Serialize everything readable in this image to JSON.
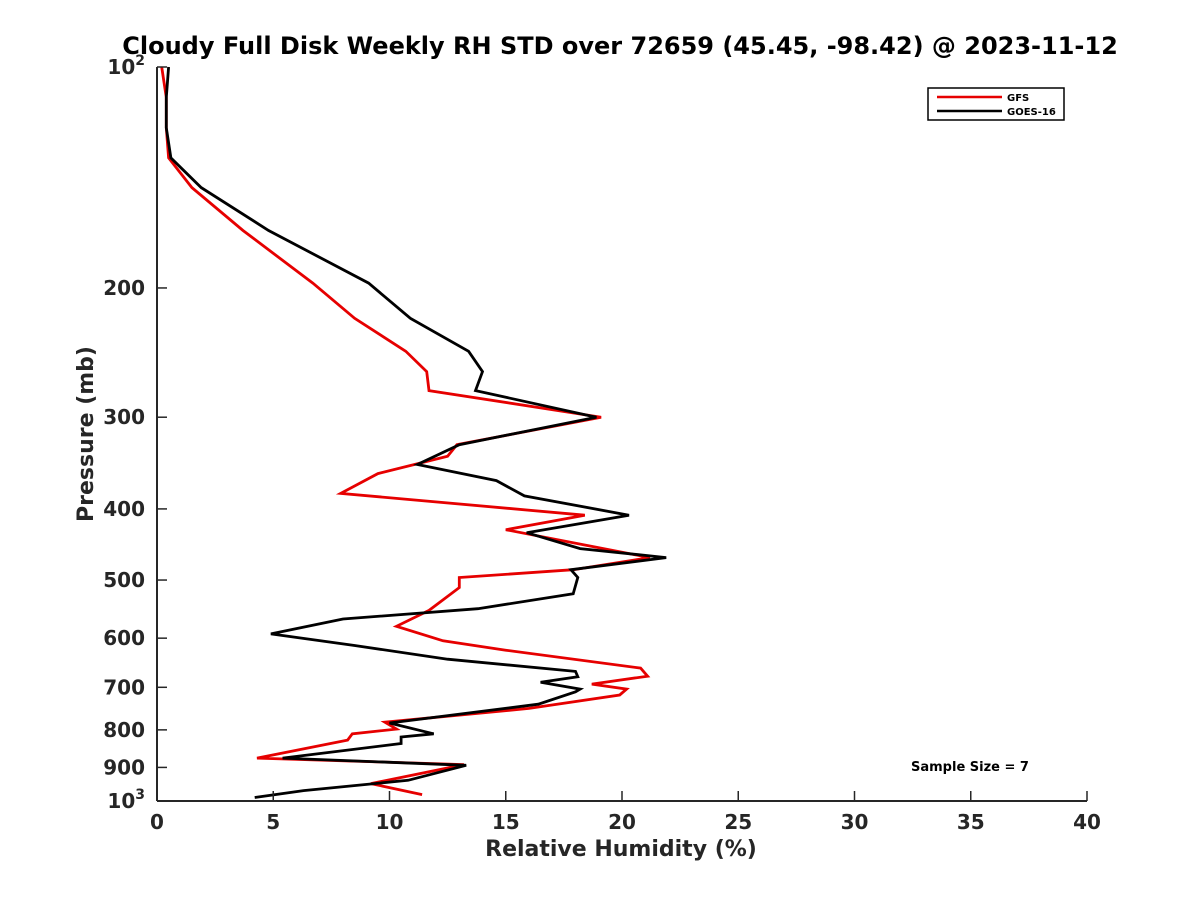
{
  "chart_data": {
    "type": "line",
    "title": "Cloudy Full Disk Weekly RH STD over 72659 (45.45, -98.42) @ 2023-11-12",
    "xlabel": "Relative Humidity (%)",
    "ylabel": "Pressure (mb)",
    "xlim": [
      0,
      40
    ],
    "ylim": [
      100,
      1000
    ],
    "y_scale": "log",
    "y_reversed": true,
    "grid": false,
    "x_ticks": [
      0,
      5,
      10,
      15,
      20,
      25,
      30,
      35,
      40
    ],
    "x_tick_labels": [
      "0",
      "5",
      "10",
      "15",
      "20",
      "25",
      "30",
      "35",
      "40"
    ],
    "y_ticks": [
      100,
      200,
      300,
      400,
      500,
      600,
      700,
      800,
      900,
      1000
    ],
    "y_tick_labels": [
      {
        "base": "10",
        "exp": "2"
      },
      {
        "base": "200",
        "exp": ""
      },
      {
        "base": "300",
        "exp": ""
      },
      {
        "base": "400",
        "exp": ""
      },
      {
        "base": "500",
        "exp": ""
      },
      {
        "base": "600",
        "exp": ""
      },
      {
        "base": "700",
        "exp": ""
      },
      {
        "base": "800",
        "exp": ""
      },
      {
        "base": "900",
        "exp": ""
      },
      {
        "base": "10",
        "exp": "3"
      }
    ],
    "legend_position": "top-right",
    "annotation": "Sample Size = 7",
    "series": [
      {
        "name": "GFS",
        "color": "#e60000",
        "points": [
          [
            0.2,
            100
          ],
          [
            0.4,
            110
          ],
          [
            0.4,
            121
          ],
          [
            0.5,
            133
          ],
          [
            1.5,
            146
          ],
          [
            3.7,
            167
          ],
          [
            6.7,
            197
          ],
          [
            8.5,
            220
          ],
          [
            10.7,
            244
          ],
          [
            11.6,
            260
          ],
          [
            11.7,
            276
          ],
          [
            19.1,
            300
          ],
          [
            12.9,
            327
          ],
          [
            12.5,
            339
          ],
          [
            9.5,
            358
          ],
          [
            7.9,
            381
          ],
          [
            18.4,
            408
          ],
          [
            15.0,
            427
          ],
          [
            21.2,
            466
          ],
          [
            17.9,
            484
          ],
          [
            13.0,
            496
          ],
          [
            13.0,
            512
          ],
          [
            11.7,
            550
          ],
          [
            10.3,
            578
          ],
          [
            12.3,
            605
          ],
          [
            15.0,
            623
          ],
          [
            20.8,
            659
          ],
          [
            21.1,
            676
          ],
          [
            18.7,
            693
          ],
          [
            20.2,
            704
          ],
          [
            19.9,
            717
          ],
          [
            16.0,
            748
          ],
          [
            9.8,
            781
          ],
          [
            10.3,
            798
          ],
          [
            8.4,
            810
          ],
          [
            8.2,
            826
          ],
          [
            4.3,
            874
          ],
          [
            13.2,
            892
          ],
          [
            9.2,
            947
          ],
          [
            11.4,
            980
          ]
        ]
      },
      {
        "name": "GOES-16",
        "color": "#000000",
        "points": [
          [
            0.5,
            100
          ],
          [
            0.4,
            110
          ],
          [
            0.4,
            121
          ],
          [
            0.6,
            133
          ],
          [
            1.9,
            146
          ],
          [
            4.8,
            167
          ],
          [
            9.1,
            197
          ],
          [
            10.9,
            220
          ],
          [
            13.4,
            244
          ],
          [
            14.0,
            260
          ],
          [
            13.7,
            276
          ],
          [
            18.9,
            300
          ],
          [
            13.0,
            327
          ],
          [
            11.2,
            348
          ],
          [
            14.6,
            366
          ],
          [
            15.8,
            384
          ],
          [
            20.3,
            408
          ],
          [
            15.9,
            431
          ],
          [
            18.2,
            453
          ],
          [
            21.9,
            466
          ],
          [
            17.8,
            484
          ],
          [
            18.1,
            496
          ],
          [
            17.9,
            522
          ],
          [
            13.8,
            547
          ],
          [
            8.0,
            565
          ],
          [
            4.9,
            592
          ],
          [
            8.5,
            614
          ],
          [
            12.5,
            641
          ],
          [
            18.0,
            666
          ],
          [
            18.1,
            677
          ],
          [
            16.5,
            689
          ],
          [
            18.2,
            704
          ],
          [
            18.0,
            710
          ],
          [
            16.4,
            738
          ],
          [
            10.0,
            783
          ],
          [
            11.9,
            810
          ],
          [
            10.5,
            818
          ],
          [
            10.5,
            835
          ],
          [
            5.4,
            874
          ],
          [
            13.3,
            894
          ],
          [
            10.8,
            937
          ],
          [
            6.3,
            968
          ],
          [
            4.2,
            989
          ]
        ]
      }
    ]
  }
}
